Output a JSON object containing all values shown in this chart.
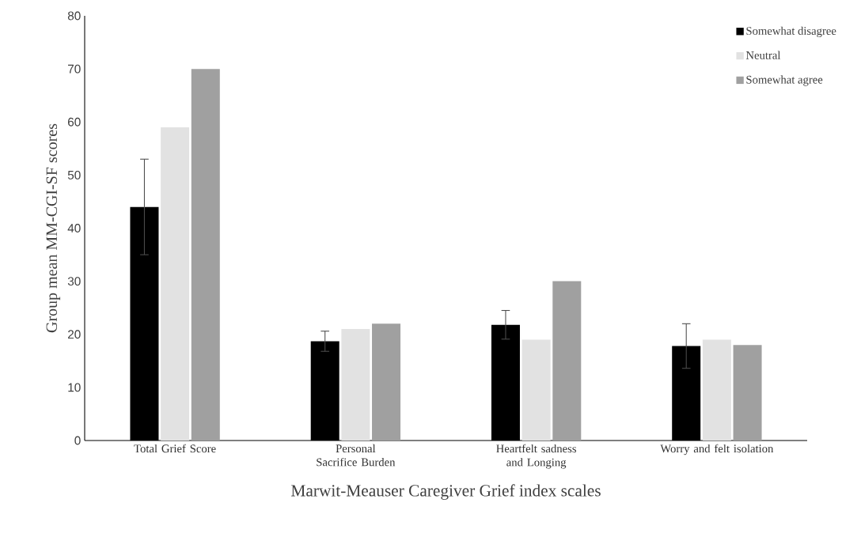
{
  "chart_data": {
    "type": "bar",
    "xlabel": "Marwit-Meauser Caregiver Grief index scales",
    "ylabel": "Group mean MM-CGI-SF scores",
    "categories": [
      "Total Grief Score",
      "Personal Sacrifice Burden",
      "Heartfelt sadness and Longing",
      "Worry and felt isolation"
    ],
    "series": [
      {
        "name": "Somewhat disagree",
        "color": "#000000",
        "values": [
          44,
          18.7,
          21.8,
          17.8
        ],
        "errors": [
          9,
          1.9,
          2.7,
          4.2
        ]
      },
      {
        "name": "Neutral",
        "color": "#e2e2e2",
        "values": [
          59,
          21,
          19,
          19
        ]
      },
      {
        "name": "Somewhat agree",
        "color": "#a0a0a0",
        "values": [
          70,
          22,
          30,
          18
        ]
      }
    ],
    "ylim": [
      0,
      80
    ],
    "yticks": [
      0,
      10,
      20,
      30,
      40,
      50,
      60,
      70,
      80
    ],
    "legend": "top right"
  }
}
